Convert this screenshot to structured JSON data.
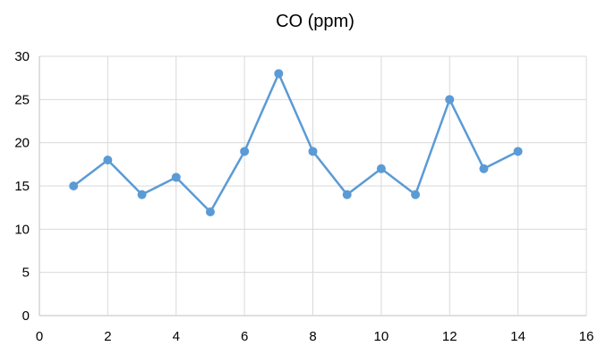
{
  "chart_data": {
    "type": "line",
    "title": "CO (ppm)",
    "xlabel": "",
    "ylabel": "",
    "xlim": [
      0,
      16
    ],
    "ylim": [
      0,
      30
    ],
    "x_ticks": [
      "0",
      "2",
      "4",
      "6",
      "8",
      "10",
      "12",
      "14",
      "16"
    ],
    "y_ticks": [
      "0",
      "5",
      "10",
      "15",
      "20",
      "25",
      "30"
    ],
    "grid": true,
    "legend": "none",
    "series": [
      {
        "color": "#5b9bd5",
        "x": [
          1,
          2,
          3,
          4,
          5,
          6,
          7,
          8,
          9,
          10,
          11,
          12,
          13,
          14
        ],
        "y": [
          15,
          18,
          14,
          16,
          12,
          19,
          28,
          19,
          14,
          17,
          14,
          25,
          17,
          19
        ]
      }
    ]
  }
}
